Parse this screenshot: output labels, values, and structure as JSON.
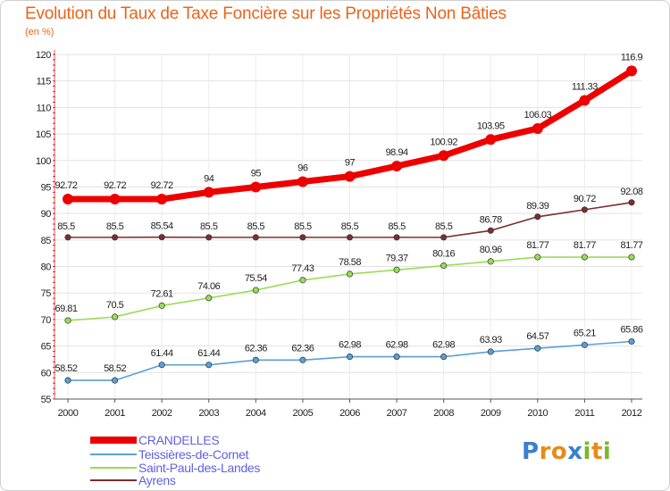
{
  "title": "Evolution du Taux de Taxe Foncière sur les Propriétés Non Bâties",
  "unit_label": "(en %)",
  "logo": {
    "text": "Proxiti",
    "letters": [
      {
        "ch": "P",
        "color": "#3a7fd0"
      },
      {
        "ch": "r",
        "color": "#e88a1a"
      },
      {
        "ch": "o",
        "color": "#e88a1a"
      },
      {
        "ch": "x",
        "color": "#3a7fd0"
      },
      {
        "ch": "i",
        "color": "#7ab82e"
      },
      {
        "ch": "t",
        "color": "#e88a1a"
      },
      {
        "ch": "i",
        "color": "#7ab82e"
      }
    ]
  },
  "chart_data": {
    "type": "line",
    "x": [
      "2000",
      "2001",
      "2002",
      "2003",
      "2004",
      "2005",
      "2006",
      "2007",
      "2008",
      "2009",
      "2010",
      "2011",
      "2012"
    ],
    "ylim": [
      55,
      120
    ],
    "yticks": [
      55,
      60,
      65,
      70,
      75,
      80,
      85,
      90,
      95,
      100,
      105,
      110,
      115,
      120
    ],
    "grid": true,
    "legend_position": "bottom-left",
    "series": [
      {
        "name": "CRANDELLES",
        "color": "#ee0000",
        "values": [
          92.72,
          92.72,
          92.72,
          94,
          95,
          96,
          97,
          98.94,
          100.92,
          103.95,
          106.03,
          111.33,
          116.9
        ],
        "labels": [
          "92.72",
          "92.72",
          "92.72",
          "94",
          "95",
          "96",
          "97",
          "98.94",
          "100.92",
          "103.95",
          "106.03",
          "111.33",
          "116.9"
        ]
      },
      {
        "name": "Teissières-de-Cornet",
        "color": "#5b9fd4",
        "values": [
          58.52,
          58.52,
          61.44,
          61.44,
          62.36,
          62.36,
          62.98,
          62.98,
          62.98,
          63.93,
          64.57,
          65.21,
          65.86
        ],
        "labels": [
          "58.52",
          "58.52",
          "61.44",
          "61.44",
          "62.36",
          "62.36",
          "62.98",
          "62.98",
          "62.98",
          "63.93",
          "64.57",
          "65.21",
          "65.86"
        ]
      },
      {
        "name": "Saint-Paul-des-Landes",
        "color": "#99dd55",
        "values": [
          69.81,
          70.5,
          72.61,
          74.06,
          75.54,
          77.43,
          78.58,
          79.37,
          80.16,
          80.96,
          81.77,
          81.77,
          81.77
        ],
        "labels": [
          "69.81",
          "70.5",
          "72.61",
          "74.06",
          "75.54",
          "77.43",
          "78.58",
          "79.37",
          "80.16",
          "80.96",
          "81.77",
          "81.77",
          "81.77"
        ]
      },
      {
        "name": "Ayrens",
        "color": "#7a2e2e",
        "values": [
          85.5,
          85.5,
          85.54,
          85.5,
          85.5,
          85.5,
          85.5,
          85.5,
          85.5,
          86.78,
          89.39,
          90.72,
          92.08
        ],
        "labels": [
          "85.5",
          "85.5",
          "85.54",
          "85.5",
          "85.5",
          "85.5",
          "85.5",
          "85.5",
          "85.5",
          "86.78",
          "89.39",
          "90.72",
          "92.08"
        ]
      }
    ]
  }
}
